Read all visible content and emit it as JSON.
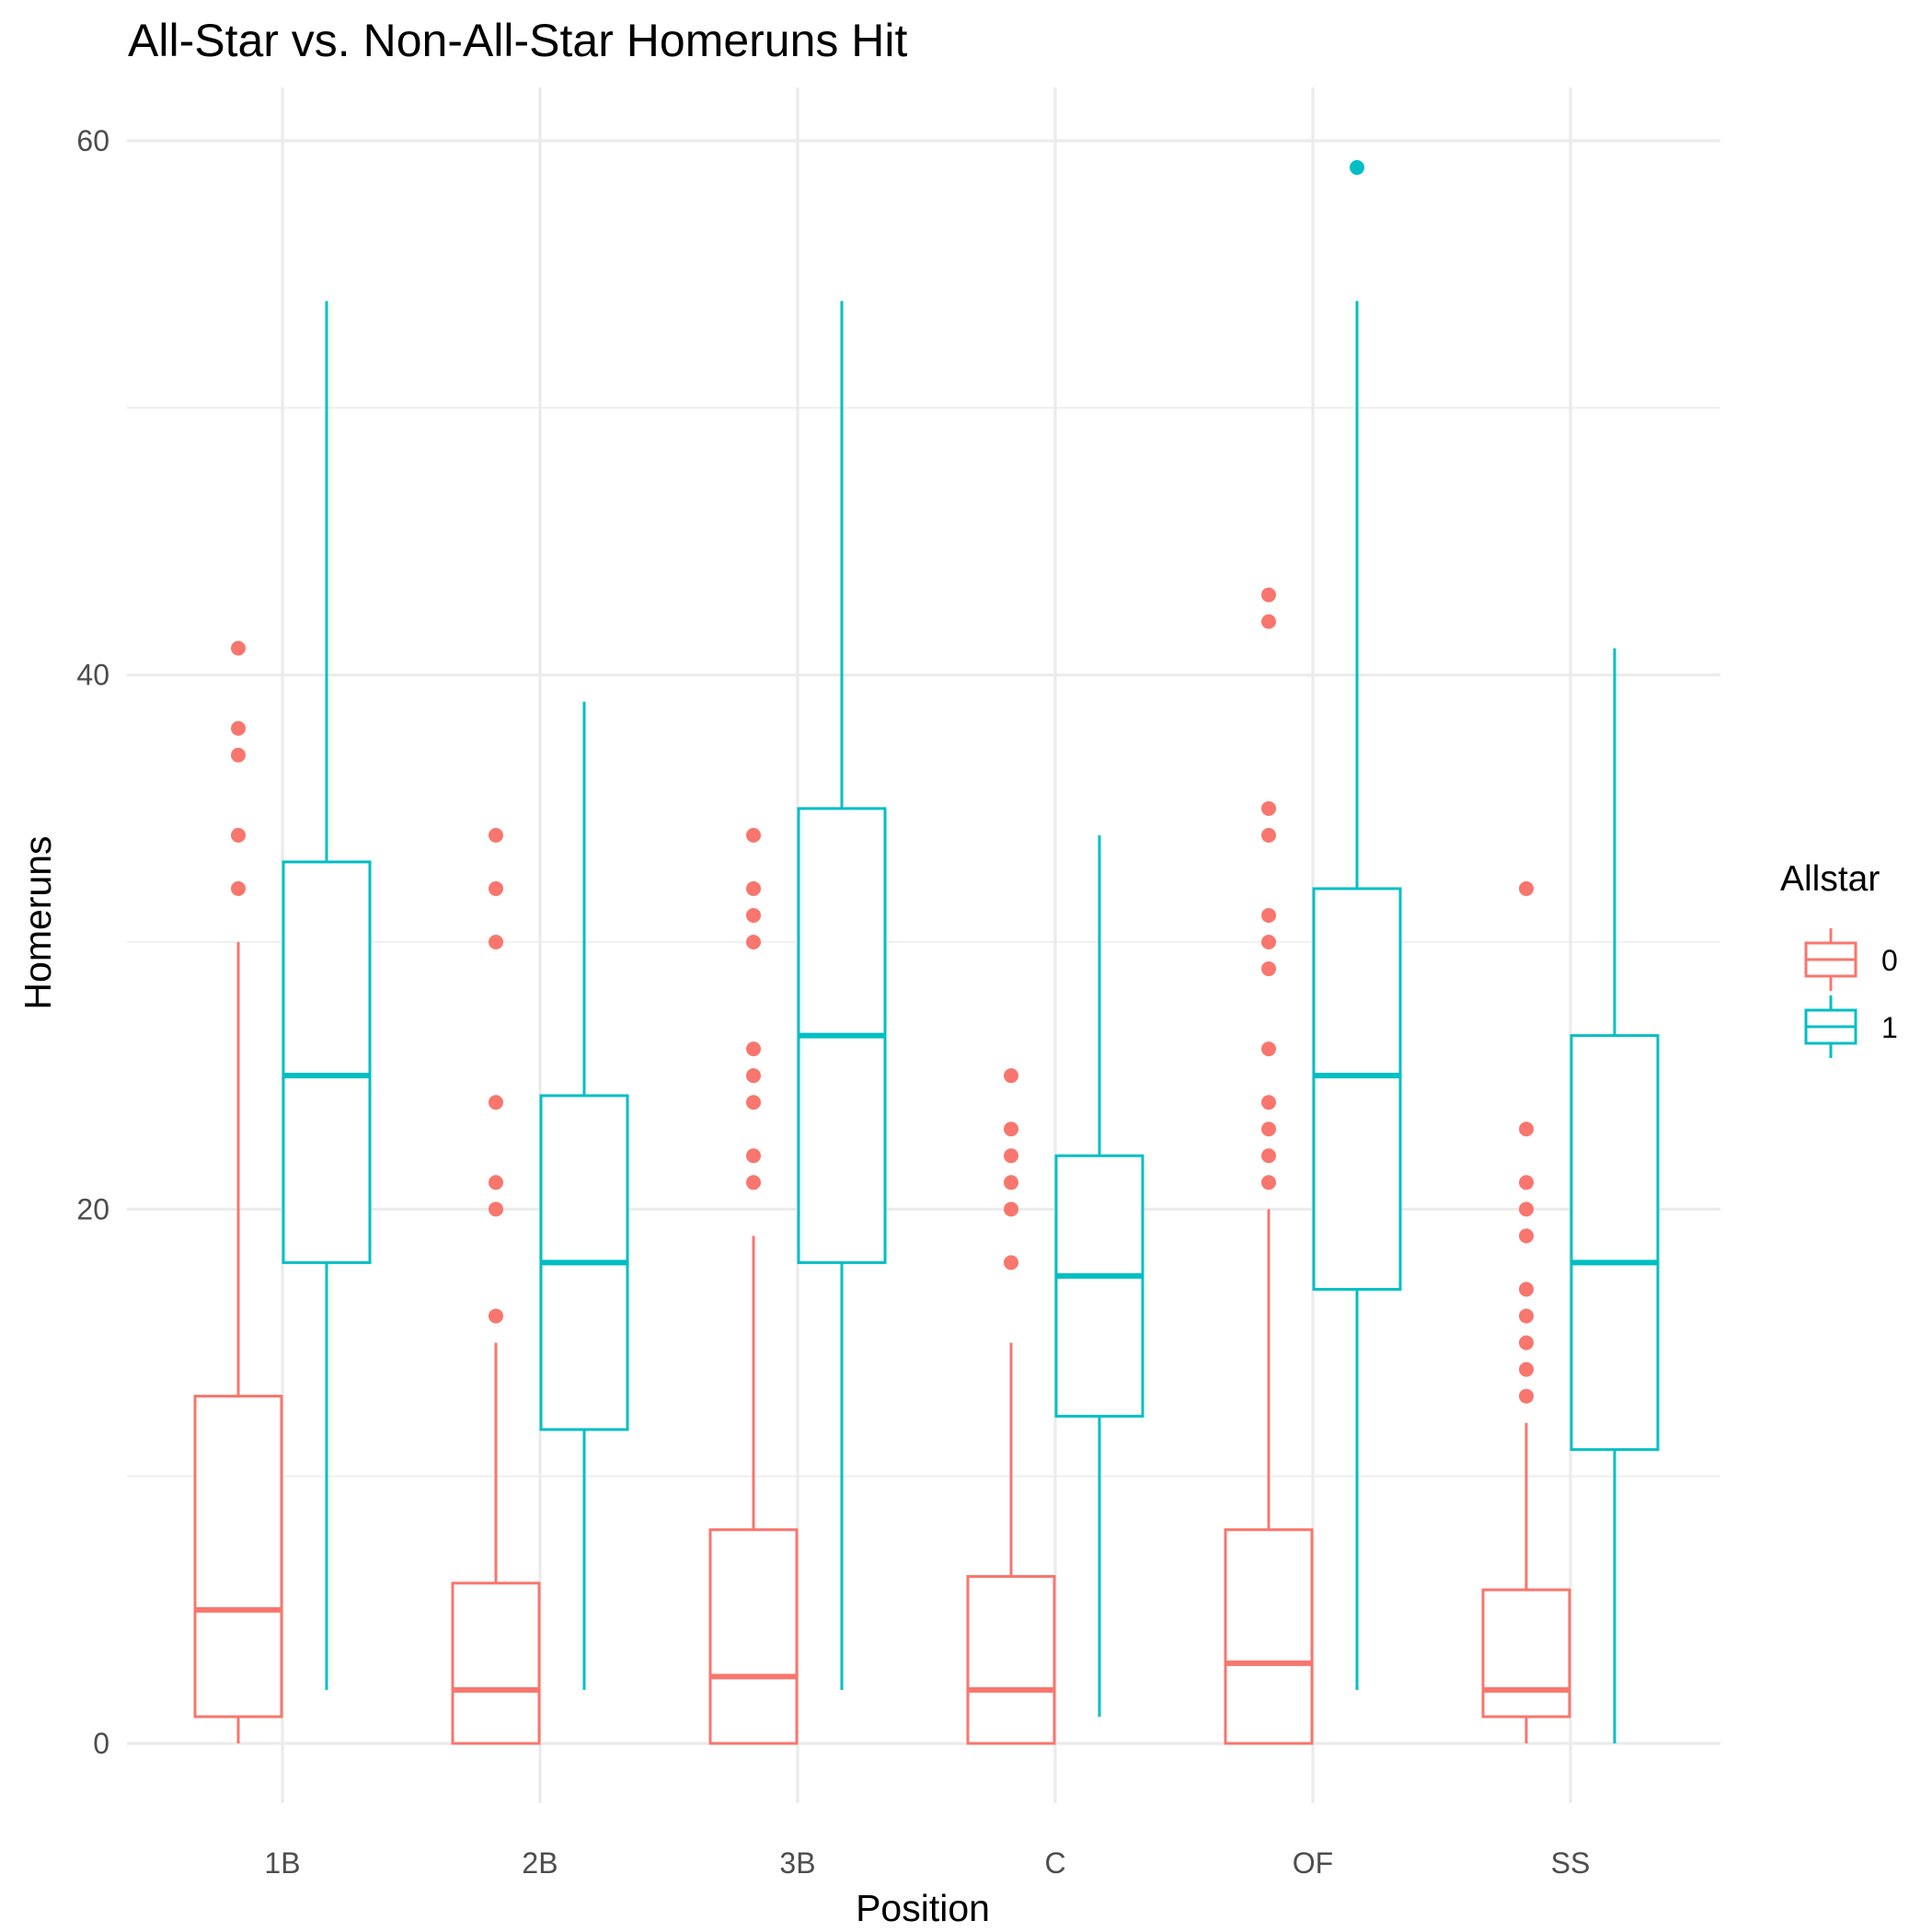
{
  "chart_data": {
    "type": "box",
    "title": "All-Star vs. Non-All-Star Homeruns Hit",
    "xlabel": "Position",
    "ylabel": "Homeruns",
    "categories": [
      "1B",
      "2B",
      "3B",
      "C",
      "OF",
      "SS"
    ],
    "ylim": [
      -2.5,
      63.5
    ],
    "yticks": [
      0,
      20,
      40,
      60
    ],
    "grid": true,
    "legend": {
      "title": "Allstar",
      "position": "right",
      "entries": [
        {
          "label": "0",
          "color": "#F8766D"
        },
        {
          "label": "1",
          "color": "#00BFC4"
        }
      ]
    },
    "series": [
      {
        "name": "0",
        "color": "#F8766D",
        "boxes": [
          {
            "category": "1B",
            "whisker_low": 0,
            "q1": 1,
            "median": 5,
            "q3": 13,
            "whisker_high": 30,
            "outliers": [
              32,
              34,
              37,
              38,
              41
            ]
          },
          {
            "category": "2B",
            "whisker_low": 0,
            "q1": 0,
            "median": 2,
            "q3": 6,
            "whisker_high": 15,
            "outliers": [
              16,
              20,
              21,
              24,
              30,
              32,
              34
            ]
          },
          {
            "category": "3B",
            "whisker_low": 0,
            "q1": 0,
            "median": 2.5,
            "q3": 8,
            "whisker_high": 19,
            "outliers": [
              21,
              22,
              24,
              25,
              26,
              30,
              31,
              32,
              34
            ]
          },
          {
            "category": "C",
            "whisker_low": 0,
            "q1": 0,
            "median": 2,
            "q3": 6.25,
            "whisker_high": 15,
            "outliers": [
              18,
              20,
              21,
              22,
              23,
              25
            ]
          },
          {
            "category": "OF",
            "whisker_low": 0,
            "q1": 0,
            "median": 3,
            "q3": 8,
            "whisker_high": 20,
            "outliers": [
              21,
              22,
              23,
              24,
              26,
              29,
              30,
              31,
              34,
              35,
              42,
              43
            ]
          },
          {
            "category": "SS",
            "whisker_low": 0,
            "q1": 1,
            "median": 2,
            "q3": 5.75,
            "whisker_high": 12,
            "outliers": [
              13,
              14,
              15,
              16,
              17,
              19,
              20,
              21,
              23,
              32
            ]
          }
        ]
      },
      {
        "name": "1",
        "color": "#00BFC4",
        "boxes": [
          {
            "category": "1B",
            "whisker_low": 2,
            "q1": 18,
            "median": 25,
            "q3": 33,
            "whisker_high": 54,
            "outliers": []
          },
          {
            "category": "2B",
            "whisker_low": 2,
            "q1": 11.75,
            "median": 18,
            "q3": 24.25,
            "whisker_high": 39,
            "outliers": []
          },
          {
            "category": "3B",
            "whisker_low": 2,
            "q1": 18,
            "median": 26.5,
            "q3": 35,
            "whisker_high": 54,
            "outliers": []
          },
          {
            "category": "C",
            "whisker_low": 1,
            "q1": 12.25,
            "median": 17.5,
            "q3": 22,
            "whisker_high": 34,
            "outliers": []
          },
          {
            "category": "OF",
            "whisker_low": 2,
            "q1": 17,
            "median": 25,
            "q3": 32,
            "whisker_high": 54,
            "outliers": [
              59
            ]
          },
          {
            "category": "SS",
            "whisker_low": 0,
            "q1": 11,
            "median": 18,
            "q3": 26.5,
            "whisker_high": 41,
            "outliers": []
          }
        ]
      }
    ]
  }
}
